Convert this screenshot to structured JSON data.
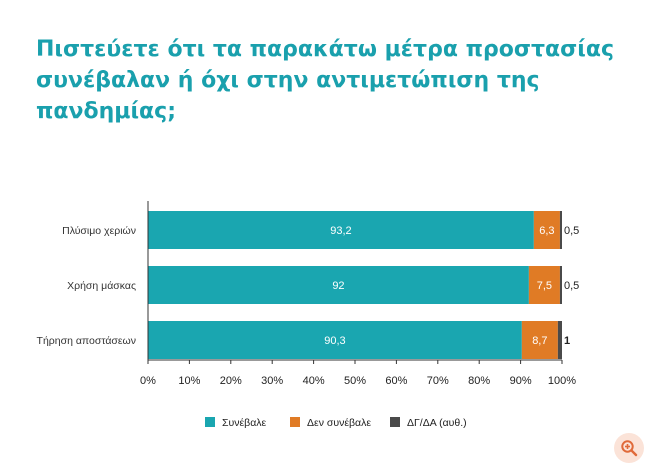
{
  "title": {
    "line1": "Πιστεύετε ότι τα παρακάτω μέτρα προστασίας",
    "line2": "συνέβαλαν ή όχι στην αντιμετώπιση της πανδημίας;"
  },
  "colors": {
    "title": "#1aa0ad",
    "series": [
      "#1aa6b0",
      "#e07b25",
      "#4a4a4a"
    ],
    "axis": "#333333",
    "zoom_bg": "#fbe3d8",
    "zoom_fg": "#e06a3a"
  },
  "zoom_icon": "zoom-in-icon",
  "chart_data": {
    "type": "bar",
    "orientation": "horizontal",
    "stacked": true,
    "title": "Πιστεύετε ότι τα παρακάτω μέτρα προστασίας συνέβαλαν ή όχι στην αντιμετώπιση της πανδημίας;",
    "categories": [
      "Πλύσιμο χεριών",
      "Χρήση μάσκας",
      "Τήρηση αποστάσεων"
    ],
    "series": [
      {
        "name": "Συνέβαλε",
        "values": [
          93.2,
          92,
          90.3
        ],
        "labels": [
          "93,2",
          "92",
          "90,3"
        ]
      },
      {
        "name": "Δεν συνέβαλε",
        "values": [
          6.3,
          7.5,
          8.7
        ],
        "labels": [
          "6,3",
          "7,5",
          "8,7"
        ]
      },
      {
        "name": "ΔΓ/ΔΑ (αυθ.)",
        "values": [
          0.5,
          0.5,
          1
        ],
        "labels": [
          "0,5",
          "0,5",
          "1"
        ]
      }
    ],
    "xlim": [
      0,
      100
    ],
    "x_ticks": [
      "0%",
      "10%",
      "20%",
      "30%",
      "40%",
      "50%",
      "60%",
      "70%",
      "80%",
      "90%",
      "100%"
    ],
    "grid": false,
    "legend": "bottom"
  }
}
